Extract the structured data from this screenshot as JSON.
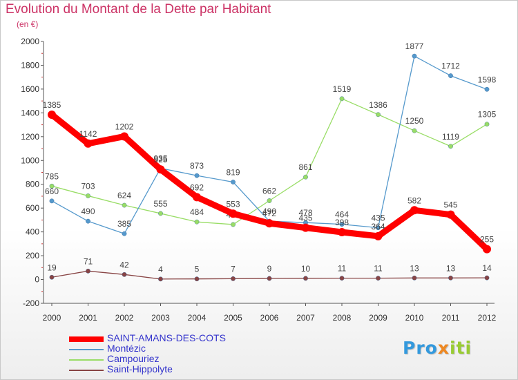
{
  "chart_data": {
    "type": "line",
    "title": "Evolution du Montant de la Dette par Habitant",
    "subtitle": "(en €)",
    "x": [
      "2000",
      "2001",
      "2002",
      "2003",
      "2004",
      "2005",
      "2006",
      "2007",
      "2008",
      "2009",
      "2010",
      "2011",
      "2012"
    ],
    "ylim": [
      -200,
      2000
    ],
    "yticks": [
      -200,
      0,
      200,
      400,
      600,
      800,
      1000,
      1200,
      1400,
      1600,
      1800,
      2000
    ],
    "grid": false,
    "legend_position": "bottom-left",
    "series": [
      {
        "name": "SAINT-AMANS-DES-COTS",
        "color": "#ff0000",
        "values": [
          1385,
          1142,
          1202,
          925,
          692,
          553,
          472,
          435,
          398,
          364,
          582,
          545,
          255
        ]
      },
      {
        "name": "Montézic",
        "color": "#5599cc",
        "values": [
          660,
          490,
          385,
          935,
          873,
          819,
          490,
          478,
          464,
          435,
          1877,
          1712,
          1598
        ]
      },
      {
        "name": "Campouriez",
        "color": "#99dd66",
        "values": [
          785,
          703,
          624,
          555,
          484,
          462,
          662,
          861,
          1519,
          1386,
          1250,
          1119,
          1305
        ]
      },
      {
        "name": "Saint-Hippolyte",
        "color": "#884444",
        "values": [
          19,
          71,
          42,
          4,
          5,
          7,
          9,
          10,
          11,
          11,
          13,
          13,
          14
        ]
      }
    ]
  },
  "logo": {
    "part1": "Pro",
    "part2": "x",
    "part3": "iti"
  }
}
